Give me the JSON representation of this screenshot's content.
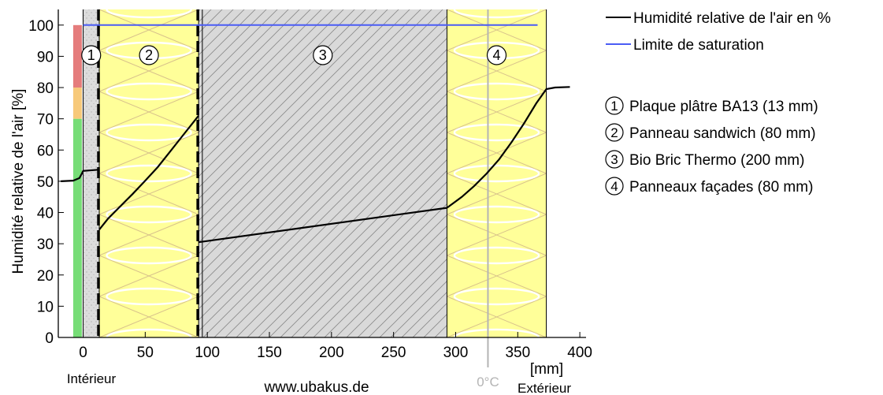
{
  "chart_data": {
    "type": "line",
    "title": "",
    "ylabel": "Humidité relative de l'air [%]",
    "xlabel": "[mm]",
    "xlim": [
      -20,
      405
    ],
    "ylim": [
      0,
      105
    ],
    "x_ticks": [
      0,
      50,
      100,
      150,
      200,
      250,
      300,
      350,
      400
    ],
    "y_ticks": [
      0,
      10,
      20,
      30,
      40,
      50,
      60,
      70,
      80,
      90,
      100
    ],
    "grid": false,
    "legend_position": "right",
    "side_labels": {
      "inside": "Intérieur",
      "outside": "Extérieur",
      "website": "www.ubakus.de"
    },
    "freezing_point": {
      "x": 326,
      "label": "0°C"
    },
    "comfort_bar": [
      {
        "from": 0,
        "to": 70,
        "color": "#77dd77"
      },
      {
        "from": 70,
        "to": 80,
        "color": "#f7c97a"
      },
      {
        "from": 80,
        "to": 100,
        "color": "#e57c7c"
      }
    ],
    "layers": [
      {
        "id": "1",
        "x0": 0,
        "x1": 13,
        "label": "Plaque plâtre BA13 (13 mm)",
        "fill": "#dcdcdc",
        "pattern": "dots"
      },
      {
        "id": "2",
        "x0": 13,
        "x1": 93,
        "label": "Panneau sandwich (80 mm)",
        "fill": "#ffff99",
        "pattern": "insulation"
      },
      {
        "id": "3",
        "x0": 93,
        "x1": 293,
        "label": "Bio Bric Thermo (200 mm)",
        "fill": "#d9d9d9",
        "pattern": "hatch"
      },
      {
        "id": "4",
        "x0": 293,
        "x1": 373,
        "label": "Panneaux façades (80 mm)",
        "fill": "#ffff99",
        "pattern": "insulation"
      }
    ],
    "series": [
      {
        "name": "Humidité relative de l'air en %",
        "color": "#000000",
        "segments": [
          [
            [
              -18,
              50
            ],
            [
              -8,
              50.2
            ],
            [
              -3,
              51
            ],
            [
              -1,
              52.5
            ],
            [
              0,
              53.3
            ],
            [
              13,
              53.7
            ]
          ],
          [
            [
              13,
              34.5
            ],
            [
              20,
              38
            ],
            [
              30,
              42
            ],
            [
              40,
              46
            ],
            [
              50,
              50.2
            ],
            [
              60,
              54.5
            ],
            [
              70,
              59.5
            ],
            [
              80,
              64.5
            ],
            [
              88,
              68.5
            ],
            [
              93,
              71
            ]
          ],
          [
            [
              93,
              30.5
            ],
            [
              293,
              41.5
            ]
          ],
          [
            [
              293,
              41.5
            ],
            [
              305,
              45
            ],
            [
              315,
              48.5
            ],
            [
              325,
              52.5
            ],
            [
              335,
              57
            ],
            [
              345,
              62.5
            ],
            [
              355,
              68.5
            ],
            [
              365,
              75
            ],
            [
              373,
              79.5
            ],
            [
              380,
              80
            ],
            [
              392,
              80.2
            ]
          ]
        ]
      },
      {
        "name": "Limite de saturation",
        "color": "#4b5cf5",
        "segments": [
          [
            [
              0,
              100
            ],
            [
              366,
              100
            ]
          ]
        ]
      }
    ]
  }
}
